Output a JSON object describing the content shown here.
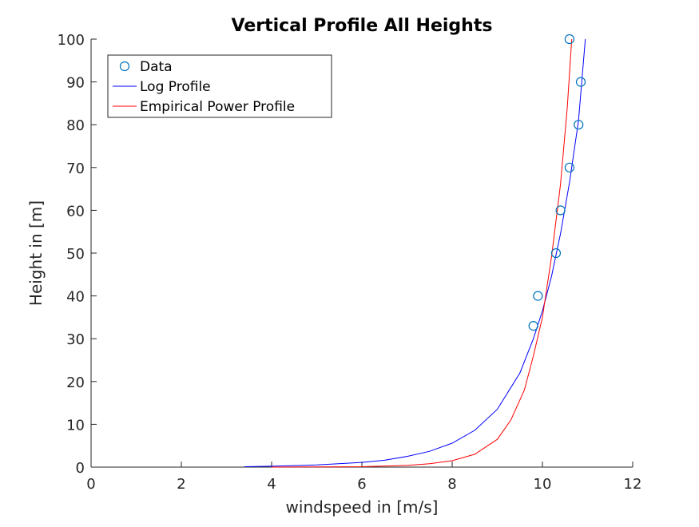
{
  "chart_data": {
    "type": "line",
    "title": "Vertical Profile All Heights",
    "xlabel": "windspeed in [m/s]",
    "ylabel": "Height in [m]",
    "xlim": [
      0,
      12
    ],
    "ylim": [
      0,
      100
    ],
    "xticks": [
      "0",
      "2",
      "4",
      "6",
      "8",
      "10",
      "12"
    ],
    "yticks": [
      "0",
      "10",
      "20",
      "30",
      "40",
      "50",
      "60",
      "70",
      "80",
      "90",
      "100"
    ],
    "grid": false,
    "legend_position": "top-left",
    "series": [
      {
        "name": "Data",
        "style": "markers",
        "color": "#0072bd",
        "x": [
          9.8,
          9.9,
          10.3,
          10.4,
          10.6,
          10.8,
          10.85,
          10.6
        ],
        "y": [
          33,
          40,
          50,
          60,
          70,
          80,
          90,
          100
        ]
      },
      {
        "name": "Log Profile",
        "style": "line",
        "color": "#0000ff",
        "x": [
          3.4,
          4.0,
          5.0,
          6.0,
          6.5,
          7.0,
          7.5,
          8.0,
          8.5,
          9.0,
          9.5,
          9.8,
          10.0,
          10.2,
          10.4,
          10.6,
          10.8,
          10.95
        ],
        "y": [
          0.1,
          0.2,
          0.5,
          1.1,
          1.6,
          2.5,
          3.7,
          5.6,
          8.6,
          13.5,
          22.0,
          30.0,
          36.5,
          44.5,
          54.5,
          66.5,
          81.0,
          100
        ]
      },
      {
        "name": "Empirical Power Profile",
        "style": "line",
        "color": "#ff0000",
        "x": [
          4.0,
          5.0,
          6.0,
          7.0,
          7.5,
          8.0,
          8.5,
          9.0,
          9.3,
          9.6,
          9.8,
          10.0,
          10.2,
          10.4,
          10.55,
          10.65
        ],
        "y": [
          0.0,
          0.05,
          0.1,
          0.4,
          0.8,
          1.5,
          3.0,
          6.5,
          11.0,
          18.0,
          26.0,
          35.0,
          49.0,
          66.0,
          84.0,
          100
        ]
      }
    ]
  }
}
